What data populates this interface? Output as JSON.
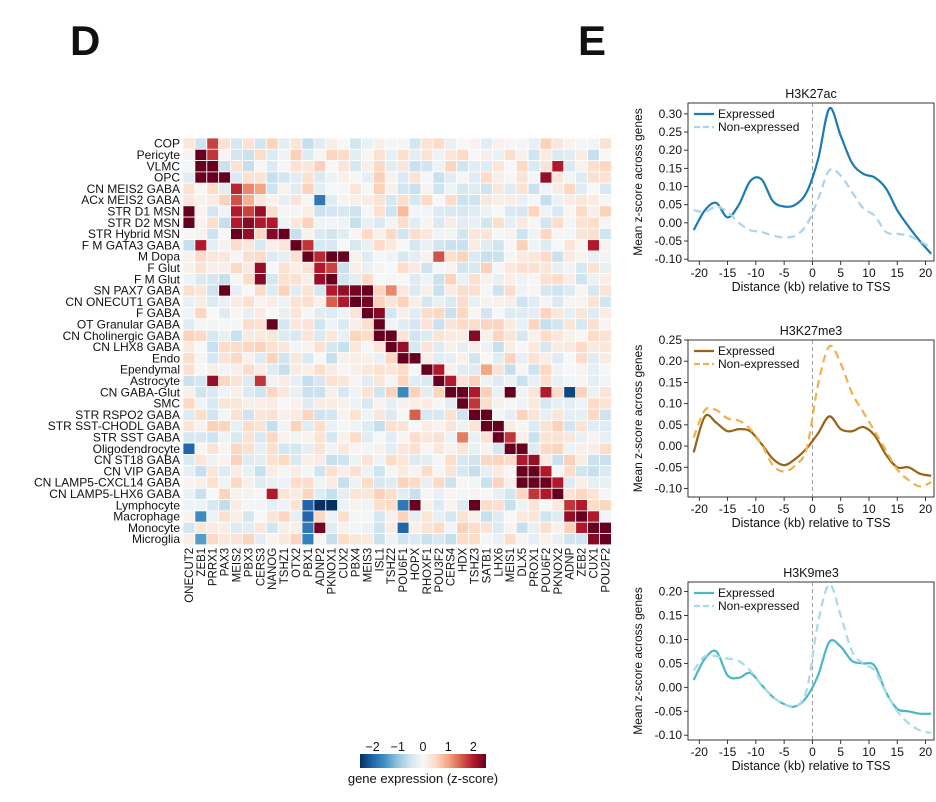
{
  "panels": {
    "left": "D",
    "right": "E"
  },
  "chart_data": [
    {
      "type": "heatmap",
      "rows": [
        "COP",
        "Pericyte",
        "VLMC",
        "OPC",
        "CN MEIS2 GABA",
        "ACx MEIS2 GABA",
        "STR D1 MSN",
        "STR D2 MSN",
        "STR Hybrid MSN",
        "F M GATA3 GABA",
        "M Dopa",
        "F Glut",
        "F M Glut",
        "SN PAX7 GABA",
        "CN ONECUT1 GABA",
        "F GABA",
        "OT Granular GABA",
        "CN Cholinergic GABA",
        "CN LHX8 GABA",
        "Endo",
        "Ependymal",
        "Astrocyte",
        "CN GABA-Glut",
        "SMC",
        "STR RSPO2 GABA",
        "STR SST-CHODL GABA",
        "STR SST GABA",
        "Oligodendrocyte",
        "CN ST18 GABA",
        "CN VIP GABA",
        "CN LAMP5-CXCL14 GABA",
        "CN LAMP5-LHX6 GABA",
        "Lymphocyte",
        "Macrophage",
        "Monocyte",
        "Microglia"
      ],
      "columns": [
        "ONECUT2",
        "ZEB1",
        "PRRX1",
        "PAX3",
        "MEIS2",
        "PBX3",
        "CERS3",
        "NANOG",
        "TSHZ1",
        "OTX2",
        "PBX1",
        "ADNP2",
        "PKNOX1",
        "CUX2",
        "PBX4",
        "MEIS3",
        "ISL1",
        "TSHZ2",
        "POU6F1",
        "HOPX",
        "RHOXF1",
        "POU3F2",
        "CERS4",
        "HDX",
        "TSHZ3",
        "SATB1",
        "LHX6",
        "MEIS1",
        "DLX5",
        "PROX1",
        "POU6F2",
        "PKNOX2",
        "ADNP",
        "ZEB2",
        "CUX1",
        "POU2F2"
      ],
      "colorbar": {
        "label": "gene expression (z-score)",
        "ticks": [
          "−2",
          "−1",
          "0",
          "1",
          "2"
        ],
        "range": [
          -2.5,
          2.5
        ],
        "colors": [
          "#053061",
          "#2166ac",
          "#4393c3",
          "#92c5de",
          "#d1e5f0",
          "#f7f7f7",
          "#fddbc7",
          "#f4a582",
          "#d6604d",
          "#b2182b",
          "#67001f"
        ]
      },
      "high_cells": [
        [
          0,
          2,
          1.7
        ],
        [
          1,
          1,
          2.5
        ],
        [
          1,
          2,
          1.8
        ],
        [
          2,
          1,
          2.5
        ],
        [
          2,
          2,
          2.5
        ],
        [
          3,
          1,
          2.5
        ],
        [
          3,
          2,
          2.5
        ],
        [
          3,
          3,
          2.5
        ],
        [
          4,
          4,
          1.9
        ],
        [
          4,
          5,
          1.2
        ],
        [
          4,
          6,
          1.0
        ],
        [
          5,
          4,
          1.6
        ],
        [
          5,
          5,
          0.9
        ],
        [
          6,
          0,
          2.5
        ],
        [
          6,
          4,
          2.0
        ],
        [
          6,
          5,
          1.7
        ],
        [
          6,
          6,
          2.2
        ],
        [
          7,
          0,
          2.5
        ],
        [
          7,
          4,
          2.0
        ],
        [
          7,
          5,
          2.3
        ],
        [
          7,
          6,
          2.0
        ],
        [
          7,
          7,
          2.0
        ],
        [
          8,
          4,
          2.5
        ],
        [
          8,
          5,
          2.2
        ],
        [
          8,
          7,
          2.3
        ],
        [
          8,
          8,
          2.5
        ],
        [
          9,
          1,
          2.0
        ],
        [
          9,
          9,
          2.5
        ],
        [
          9,
          10,
          1.8
        ],
        [
          10,
          10,
          2.5
        ],
        [
          10,
          11,
          1.9
        ],
        [
          10,
          12,
          2.5
        ],
        [
          10,
          13,
          2.5
        ],
        [
          11,
          6,
          2.2
        ],
        [
          11,
          11,
          2.0
        ],
        [
          11,
          12,
          1.7
        ],
        [
          12,
          6,
          2.3
        ],
        [
          12,
          11,
          2.2
        ],
        [
          12,
          12,
          2.5
        ],
        [
          13,
          3,
          2.5
        ],
        [
          13,
          12,
          2.0
        ],
        [
          13,
          13,
          2.2
        ],
        [
          13,
          14,
          2.4
        ],
        [
          13,
          15,
          2.5
        ],
        [
          14,
          12,
          1.5
        ],
        [
          14,
          13,
          2.0
        ],
        [
          14,
          14,
          2.5
        ],
        [
          14,
          15,
          2.4
        ],
        [
          15,
          15,
          2.5
        ],
        [
          15,
          16,
          2.3
        ],
        [
          16,
          7,
          2.5
        ],
        [
          16,
          16,
          2.5
        ],
        [
          17,
          16,
          2.5
        ],
        [
          17,
          17,
          2.5
        ],
        [
          17,
          24,
          2.3
        ],
        [
          18,
          17,
          2.5
        ],
        [
          18,
          18,
          2.2
        ],
        [
          19,
          18,
          2.5
        ],
        [
          19,
          19,
          2.5
        ],
        [
          20,
          20,
          2.5
        ],
        [
          20,
          21,
          2.0
        ],
        [
          21,
          2,
          2.2
        ],
        [
          21,
          6,
          1.8
        ],
        [
          21,
          21,
          2.5
        ],
        [
          21,
          22,
          2.0
        ],
        [
          22,
          22,
          2.5
        ],
        [
          22,
          23,
          2.5
        ],
        [
          22,
          24,
          2.0
        ],
        [
          22,
          27,
          2.5
        ],
        [
          22,
          30,
          2.0
        ],
        [
          23,
          23,
          2.5
        ],
        [
          23,
          24,
          1.8
        ],
        [
          24,
          24,
          2.5
        ],
        [
          24,
          25,
          2.5
        ],
        [
          25,
          25,
          2.5
        ],
        [
          25,
          26,
          2.5
        ],
        [
          26,
          26,
          2.5
        ],
        [
          26,
          27,
          1.8
        ],
        [
          27,
          27,
          2.5
        ],
        [
          27,
          28,
          2.5
        ],
        [
          28,
          28,
          2.0
        ],
        [
          28,
          29,
          2.2
        ],
        [
          29,
          28,
          2.5
        ],
        [
          29,
          29,
          2.5
        ],
        [
          29,
          30,
          2.0
        ],
        [
          30,
          28,
          2.5
        ],
        [
          30,
          29,
          2.5
        ],
        [
          30,
          30,
          2.5
        ],
        [
          30,
          31,
          2.0
        ],
        [
          31,
          7,
          2.0
        ],
        [
          31,
          29,
          1.8
        ],
        [
          31,
          30,
          2.0
        ],
        [
          31,
          31,
          2.5
        ],
        [
          32,
          19,
          2.5
        ],
        [
          32,
          24,
          2.5
        ],
        [
          32,
          32,
          1.8
        ],
        [
          32,
          33,
          2.0
        ],
        [
          33,
          32,
          2.2
        ],
        [
          33,
          33,
          2.5
        ],
        [
          33,
          34,
          2.0
        ],
        [
          34,
          11,
          2.4
        ],
        [
          34,
          33,
          2.0
        ],
        [
          34,
          34,
          2.5
        ],
        [
          34,
          35,
          2.5
        ],
        [
          35,
          34,
          2.3
        ],
        [
          35,
          35,
          2.5
        ],
        [
          6,
          18,
          0.8
        ],
        [
          10,
          21,
          1.6
        ],
        [
          13,
          17,
          1.2
        ],
        [
          20,
          25,
          1.0
        ],
        [
          26,
          23,
          1.3
        ],
        [
          9,
          34,
          2.0
        ],
        [
          3,
          30,
          2.2
        ],
        [
          2,
          31,
          2.0
        ],
        [
          24,
          19,
          1.5
        ]
      ],
      "low_cells": [
        [
          32,
          10,
          -2.0
        ],
        [
          32,
          11,
          -2.5
        ],
        [
          32,
          12,
          -2.5
        ],
        [
          33,
          10,
          -2.0
        ],
        [
          34,
          10,
          -1.8
        ],
        [
          35,
          10,
          -1.7
        ],
        [
          34,
          18,
          -2.0
        ],
        [
          27,
          0,
          -2.0
        ],
        [
          22,
          32,
          -2.3
        ],
        [
          5,
          11,
          -1.8
        ],
        [
          33,
          1,
          -1.6
        ],
        [
          35,
          1,
          -1.4
        ],
        [
          32,
          18,
          -1.8
        ],
        [
          22,
          18,
          -1.6
        ]
      ]
    },
    {
      "type": "line",
      "title": "H3K27ac",
      "xlabel": "Distance (kb) relative to TSS",
      "ylabel": "Mean z-score across genes",
      "x": [
        -21,
        -19,
        -17,
        -15,
        -13,
        -11,
        -9,
        -7,
        -5,
        -3,
        -1,
        1,
        3,
        5,
        7,
        9,
        11,
        13,
        15,
        17,
        19,
        21
      ],
      "xlim": [
        -22,
        21.5
      ],
      "xticks": [
        -20,
        -15,
        -10,
        -5,
        0,
        5,
        10,
        15,
        20
      ],
      "ylim": [
        -0.105,
        0.33
      ],
      "yticks": [
        -0.1,
        -0.05,
        0.0,
        0.05,
        0.1,
        0.15,
        0.2,
        0.25,
        0.3
      ],
      "ytick_labels": [
        "-0.10",
        "-0.05",
        "0.00",
        "0.05",
        "0.10",
        "0.15",
        "0.20",
        "0.25",
        "0.30"
      ],
      "series": [
        {
          "name": "Expressed",
          "color": "#1b7bb6",
          "dash": false,
          "values": [
            -0.02,
            0.035,
            0.055,
            0.015,
            0.05,
            0.115,
            0.12,
            0.06,
            0.045,
            0.05,
            0.085,
            0.175,
            0.315,
            0.24,
            0.165,
            0.135,
            0.125,
            0.095,
            0.035,
            -0.01,
            -0.05,
            -0.085
          ]
        },
        {
          "name": "Non-expressed",
          "color": "#a8d4ee",
          "dash": true,
          "values": [
            0.035,
            0.03,
            0.045,
            0.03,
            0.0,
            -0.02,
            -0.025,
            -0.035,
            -0.04,
            -0.035,
            -0.005,
            0.065,
            0.145,
            0.13,
            0.085,
            0.04,
            0.02,
            -0.025,
            -0.03,
            -0.035,
            -0.05,
            -0.07
          ]
        }
      ]
    },
    {
      "type": "line",
      "title": "H3K27me3",
      "xlabel": "Distance (kb) relative to TSS",
      "ylabel": "Mean z-score across genes",
      "x": [
        -21,
        -19,
        -17,
        -15,
        -13,
        -11,
        -9,
        -7,
        -5,
        -3,
        -1,
        1,
        3,
        5,
        7,
        9,
        11,
        13,
        15,
        17,
        19,
        21
      ],
      "xlim": [
        -22,
        21.5
      ],
      "xticks": [
        -20,
        -15,
        -10,
        -5,
        0,
        5,
        10,
        15,
        20
      ],
      "ylim": [
        -0.12,
        0.25
      ],
      "yticks": [
        -0.1,
        -0.05,
        0.0,
        0.05,
        0.1,
        0.15,
        0.2,
        0.25
      ],
      "ytick_labels": [
        "-0.10",
        "-0.05",
        "0.00",
        "0.05",
        "0.10",
        "0.15",
        "0.20",
        "0.25"
      ],
      "series": [
        {
          "name": "Expressed",
          "color": "#9a6214",
          "dash": false,
          "values": [
            -0.015,
            0.07,
            0.055,
            0.035,
            0.04,
            0.035,
            0.005,
            -0.03,
            -0.045,
            -0.03,
            -0.005,
            0.03,
            0.07,
            0.04,
            0.035,
            0.045,
            0.025,
            -0.02,
            -0.05,
            -0.05,
            -0.065,
            -0.07
          ]
        },
        {
          "name": "Non-expressed",
          "color": "#f0b04a",
          "dash": true,
          "values": [
            0.02,
            0.085,
            0.085,
            0.065,
            0.06,
            0.04,
            0.005,
            -0.045,
            -0.06,
            -0.045,
            -0.005,
            0.145,
            0.235,
            0.195,
            0.125,
            0.08,
            0.035,
            -0.01,
            -0.055,
            -0.08,
            -0.095,
            -0.085
          ]
        }
      ]
    },
    {
      "type": "line",
      "title": "H3K9me3",
      "xlabel": "Distance (kb) relative to TSS",
      "ylabel": "Mean z-score across genes",
      "x": [
        -21,
        -19,
        -17,
        -15,
        -13,
        -11,
        -9,
        -7,
        -5,
        -3,
        -1,
        1,
        3,
        5,
        7,
        9,
        11,
        13,
        15,
        17,
        19,
        21
      ],
      "xlim": [
        -22,
        21.5
      ],
      "xticks": [
        -20,
        -15,
        -10,
        -5,
        0,
        5,
        10,
        15,
        20
      ],
      "ylim": [
        -0.11,
        0.22
      ],
      "yticks": [
        -0.1,
        -0.05,
        0.0,
        0.05,
        0.1,
        0.15,
        0.2
      ],
      "ytick_labels": [
        "-0.10",
        "-0.05",
        "0.00",
        "0.05",
        "0.10",
        "0.15",
        "0.20"
      ],
      "series": [
        {
          "name": "Expressed",
          "color": "#4bb8c8",
          "dash": false,
          "values": [
            0.015,
            0.06,
            0.075,
            0.025,
            0.02,
            0.03,
            0.005,
            -0.02,
            -0.035,
            -0.04,
            -0.02,
            0.025,
            0.095,
            0.085,
            0.055,
            0.05,
            0.045,
            -0.01,
            -0.045,
            -0.05,
            -0.055,
            -0.055
          ]
        },
        {
          "name": "Non-expressed",
          "color": "#a8dbe6",
          "dash": true,
          "values": [
            0.035,
            0.065,
            0.065,
            0.06,
            0.055,
            0.035,
            0.005,
            -0.02,
            -0.035,
            -0.04,
            -0.005,
            0.135,
            0.215,
            0.15,
            0.075,
            0.05,
            0.035,
            -0.01,
            -0.05,
            -0.075,
            -0.09,
            -0.095
          ]
        }
      ]
    }
  ]
}
